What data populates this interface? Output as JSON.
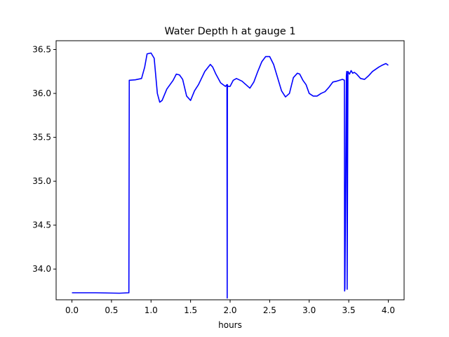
{
  "chart_data": {
    "type": "line",
    "title": "Water Depth h at gauge 1",
    "xlabel": "hours",
    "ylabel": "",
    "xlim": [
      -0.2,
      4.2
    ],
    "ylim": [
      33.65,
      36.6
    ],
    "xticks": [
      0.0,
      0.5,
      1.0,
      1.5,
      2.0,
      2.5,
      3.0,
      3.5,
      4.0
    ],
    "xtick_labels": [
      "0.0",
      "0.5",
      "1.0",
      "1.5",
      "2.0",
      "2.5",
      "3.0",
      "3.5",
      "4.0"
    ],
    "yticks": [
      34.0,
      34.5,
      35.0,
      35.5,
      36.0,
      36.5
    ],
    "ytick_labels": [
      "34.0",
      "34.5",
      "35.0",
      "35.5",
      "36.0",
      "36.5"
    ],
    "grid": false,
    "series": [
      {
        "color": "#0000ff",
        "x": [
          0.0,
          0.3,
          0.6,
          0.72,
          0.725,
          0.73,
          0.8,
          0.88,
          0.92,
          0.95,
          1.0,
          1.04,
          1.08,
          1.11,
          1.14,
          1.2,
          1.28,
          1.32,
          1.36,
          1.4,
          1.45,
          1.5,
          1.55,
          1.6,
          1.68,
          1.75,
          1.78,
          1.82,
          1.88,
          1.94,
          1.96,
          1.963,
          1.966,
          1.97,
          2.0,
          2.04,
          2.08,
          2.15,
          2.2,
          2.25,
          2.3,
          2.35,
          2.4,
          2.45,
          2.5,
          2.55,
          2.6,
          2.65,
          2.7,
          2.75,
          2.8,
          2.85,
          2.88,
          2.92,
          2.96,
          3.0,
          3.05,
          3.1,
          3.15,
          3.2,
          3.25,
          3.3,
          3.35,
          3.42,
          3.445,
          3.448,
          3.452,
          3.47,
          3.475,
          3.48,
          3.49,
          3.51,
          3.53,
          3.55,
          3.57,
          3.6,
          3.65,
          3.7,
          3.75,
          3.8,
          3.88,
          3.92,
          3.97,
          4.0
        ],
        "y": [
          33.73,
          33.73,
          33.725,
          33.73,
          36.15,
          36.15,
          36.155,
          36.17,
          36.3,
          36.45,
          36.46,
          36.4,
          36.0,
          35.9,
          35.92,
          36.05,
          36.15,
          36.22,
          36.21,
          36.16,
          35.97,
          35.92,
          36.03,
          36.1,
          36.25,
          36.33,
          36.3,
          36.22,
          36.12,
          36.08,
          36.1,
          33.67,
          36.1,
          36.08,
          36.08,
          36.15,
          36.17,
          36.14,
          36.1,
          36.06,
          36.13,
          36.25,
          36.36,
          36.42,
          36.42,
          36.33,
          36.18,
          36.03,
          35.96,
          36.0,
          36.18,
          36.23,
          36.22,
          36.15,
          36.1,
          36.0,
          35.97,
          35.97,
          36.0,
          36.02,
          36.07,
          36.13,
          36.14,
          36.16,
          36.15,
          33.75,
          33.78,
          36.2,
          36.25,
          33.77,
          36.25,
          36.22,
          36.26,
          36.23,
          36.24,
          36.22,
          36.17,
          36.16,
          36.2,
          36.25,
          36.3,
          36.32,
          36.34,
          36.32
        ]
      }
    ]
  }
}
